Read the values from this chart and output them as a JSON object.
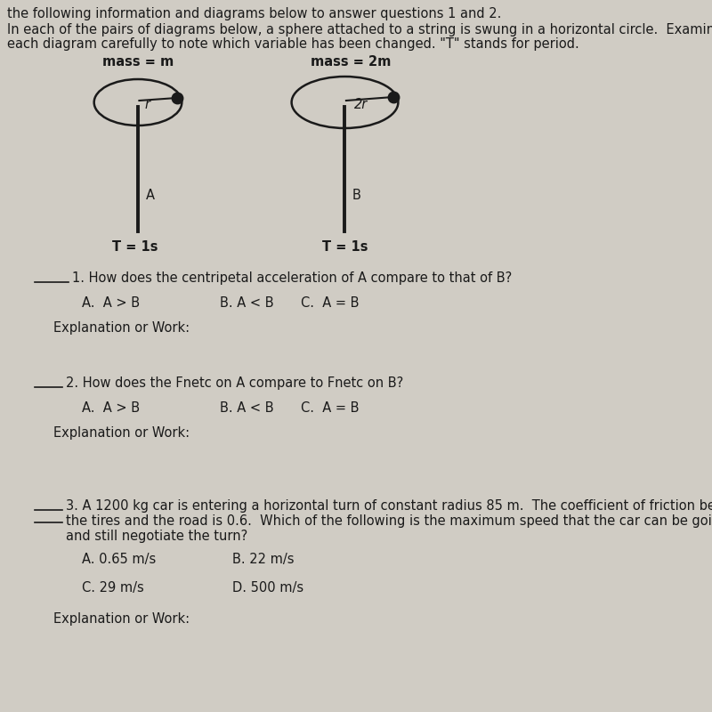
{
  "bg_color": "#d0ccc4",
  "text_color": "#1a1a1a",
  "header_text": "the following information and diagrams below to answer questions 1 and 2.",
  "intro_line1": "In each of the pairs of diagrams below, a sphere attached to a string is swung in a horizontal circle.  Examine",
  "intro_line2": "each diagram carefully to note which variable has been changed. \"T\" stands for period.",
  "diagram_A_label": "mass = m",
  "diagram_B_label": "mass = 2m",
  "radius_A_label": "r",
  "radius_B_label": "2r",
  "pendulum_A_label": "A",
  "pendulum_B_label": "B",
  "period_A_label": "T = 1s",
  "period_B_label": "T = 1s",
  "q1_text": "1. How does the centripetal acceleration of A compare to that of B?",
  "q1_A": "A.  A > B",
  "q1_B": "B. A < B",
  "q1_C": "C.  A = B",
  "q1_explain": "Explanation or Work:",
  "q2_text": "2. How does the Fnetc on A compare to Fnetc on B?",
  "q2_A": "A.  A > B",
  "q2_B": "B. A < B",
  "q2_C": "C.  A = B",
  "q2_explain": "Explanation or Work:",
  "q3_text_line1": "3. A 1200 kg car is entering a horizontal turn of constant radius 85 m.  The coefficient of friction between",
  "q3_text_line2": "the tires and the road is 0.6.  Which of the following is the maximum speed that the car can be going",
  "q3_text_line3": "and still negotiate the turn?",
  "q3_A": "A. 0.65 m/s",
  "q3_B": "B. 22 m/s",
  "q3_C": "C. 29 m/s",
  "q3_D": "D. 500 m/s",
  "q3_explain": "Explanation or Work:"
}
